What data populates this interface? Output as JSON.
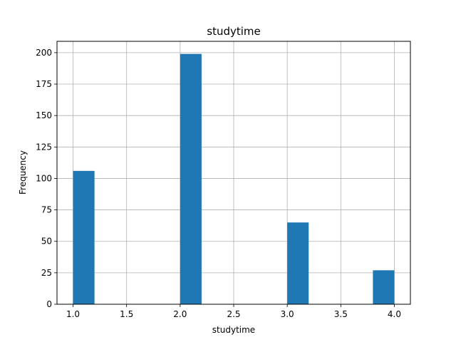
{
  "chart_data": {
    "type": "bar",
    "title": "studytime",
    "xlabel": "studytime",
    "ylabel": "Frequency",
    "bins": [
      {
        "x0": 1.0,
        "x1": 1.2,
        "value": 106
      },
      {
        "x0": 2.0,
        "x1": 2.2,
        "value": 199
      },
      {
        "x0": 3.0,
        "x1": 3.2,
        "value": 65
      },
      {
        "x0": 3.8,
        "x1": 4.0,
        "value": 27
      }
    ],
    "xlim": [
      0.85,
      4.15
    ],
    "ylim": [
      0,
      209
    ],
    "xticks": [
      1.0,
      1.5,
      2.0,
      2.5,
      3.0,
      3.5,
      4.0
    ],
    "xtick_labels": [
      "1.0",
      "1.5",
      "2.0",
      "2.5",
      "3.0",
      "3.5",
      "4.0"
    ],
    "yticks": [
      0,
      25,
      50,
      75,
      100,
      125,
      150,
      175,
      200
    ],
    "ytick_labels": [
      "0",
      "25",
      "50",
      "75",
      "100",
      "125",
      "150",
      "175",
      "200"
    ],
    "grid": true,
    "bar_color": "#1f77b4",
    "grid_color": "#b0b0b0"
  }
}
